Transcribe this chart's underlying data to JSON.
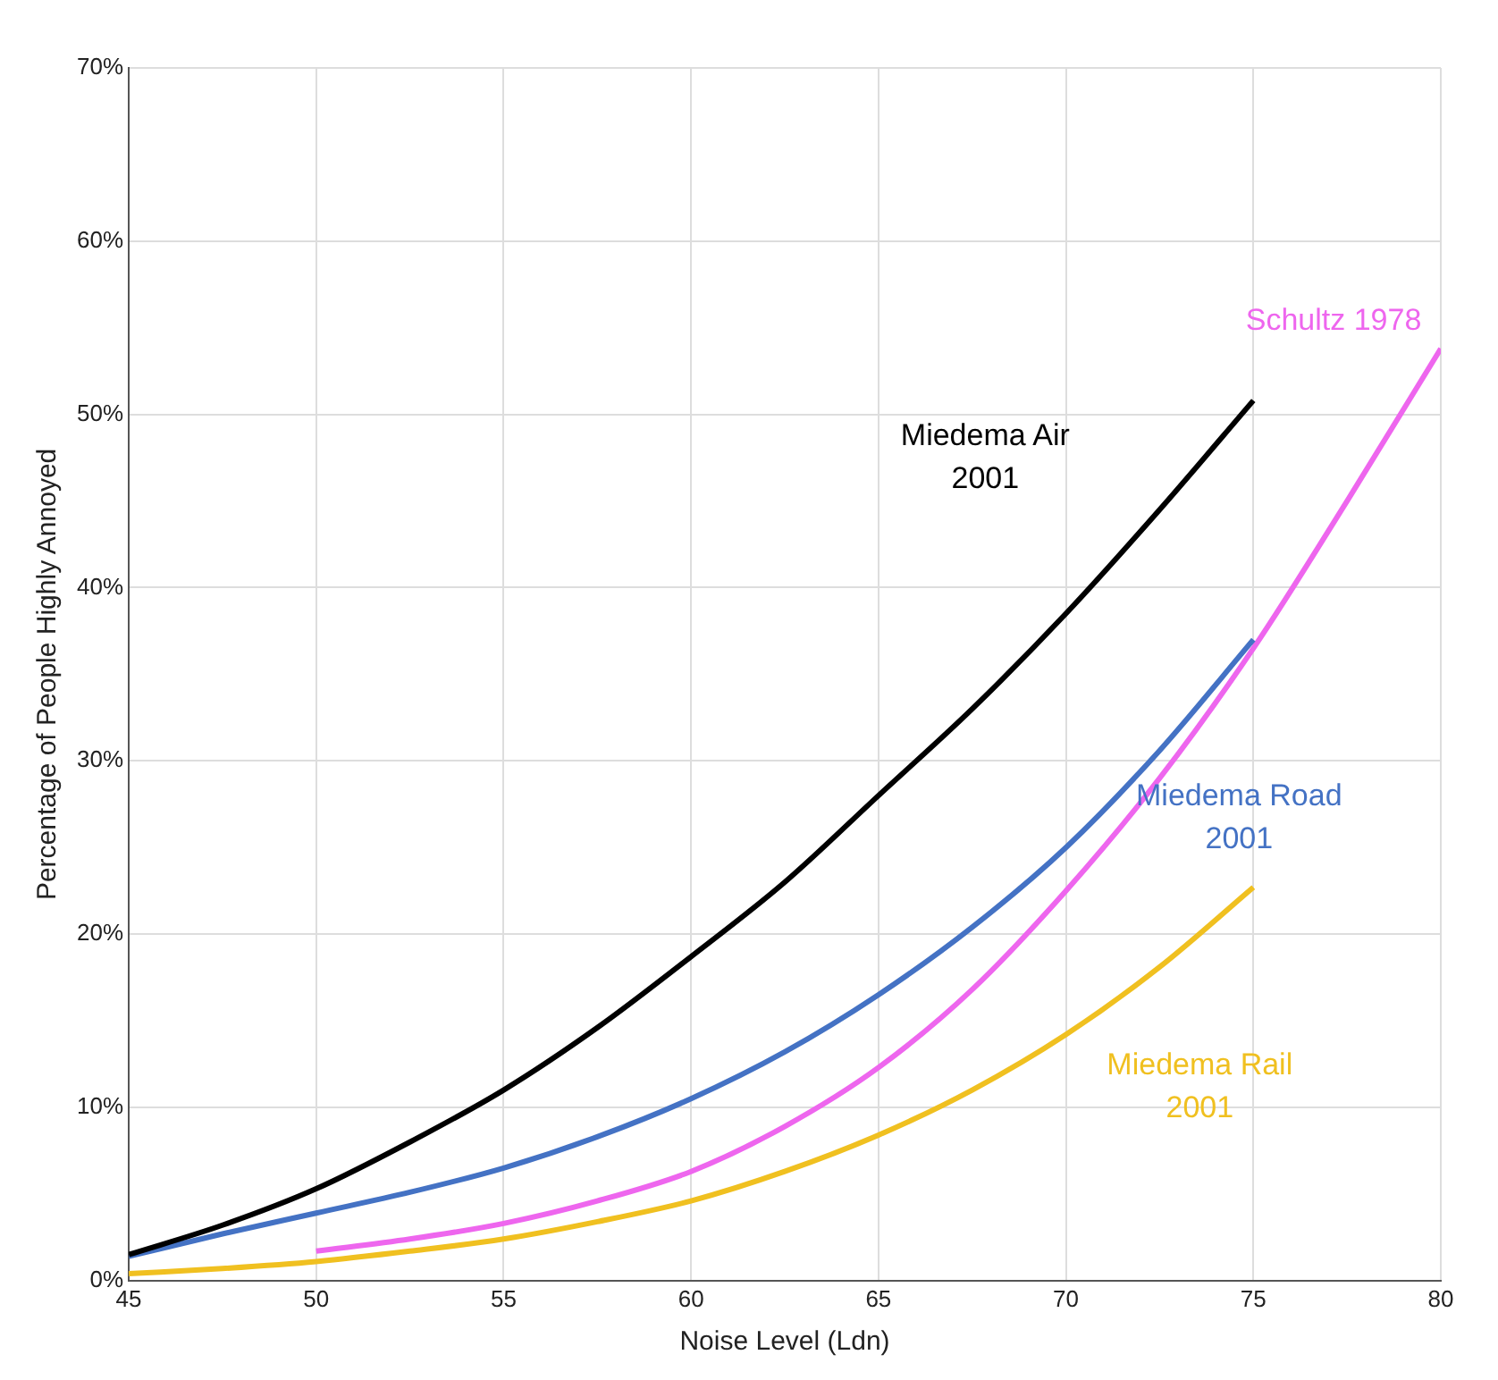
{
  "chart_data": {
    "type": "line",
    "xlabel": "Noise Level (Ldn)",
    "ylabel": "Percentage of People Highly Annoyed",
    "xlim": [
      45,
      80
    ],
    "xticks": [
      45,
      50,
      55,
      60,
      65,
      70,
      75,
      80
    ],
    "ylim": [
      0,
      70
    ],
    "yticks": [
      {
        "value": 0,
        "label": "0%"
      },
      {
        "value": 10,
        "label": "10%"
      },
      {
        "value": 20,
        "label": "20%"
      },
      {
        "value": 30,
        "label": "30%"
      },
      {
        "value": 40,
        "label": "40%"
      },
      {
        "value": 50,
        "label": "50%"
      },
      {
        "value": 60,
        "label": "60%"
      },
      {
        "value": 70,
        "label": "70%"
      }
    ],
    "grid": true,
    "legend": false,
    "marker": "none",
    "line_style": "solid",
    "series": [
      {
        "name": "Miedema Air 2001",
        "color": "#000000",
        "x": [
          45,
          47.5,
          50,
          52.5,
          55,
          57.5,
          60,
          62.5,
          65,
          67.5,
          70,
          72.5,
          75
        ],
        "values": [
          1.5,
          3.2,
          5.3,
          8,
          11,
          14.6,
          18.7,
          23,
          28,
          33,
          38.5,
          44.5,
          50.8
        ]
      },
      {
        "name": "Miedema Road 2001",
        "color": "#4472c4",
        "x": [
          45,
          47.5,
          50,
          52.5,
          55,
          57.5,
          60,
          62.5,
          65,
          67.5,
          70,
          72.5,
          75
        ],
        "values": [
          1.4,
          2.7,
          3.9,
          5.1,
          6.5,
          8.3,
          10.5,
          13.2,
          16.5,
          20.4,
          25,
          30.6,
          37
        ]
      },
      {
        "name": "Miedema Rail 2001",
        "color": "#f0c020",
        "x": [
          45,
          47.5,
          50,
          52.5,
          55,
          57.5,
          60,
          62.5,
          65,
          67.5,
          70,
          72.5,
          75
        ],
        "values": [
          0.4,
          0.7,
          1.1,
          1.7,
          2.4,
          3.4,
          4.6,
          6.3,
          8.4,
          11,
          14.2,
          18.1,
          22.7
        ]
      },
      {
        "name": "Schultz 1978",
        "color": "#ee66ee",
        "x": [
          50,
          52.5,
          55,
          57.5,
          60,
          62.5,
          65,
          67.5,
          70,
          72.5,
          75,
          77.5,
          80
        ],
        "values": [
          1.7,
          2.4,
          3.3,
          4.6,
          6.3,
          8.9,
          12.3,
          16.8,
          22.5,
          29,
          36.5,
          45,
          53.8
        ]
      }
    ]
  }
}
